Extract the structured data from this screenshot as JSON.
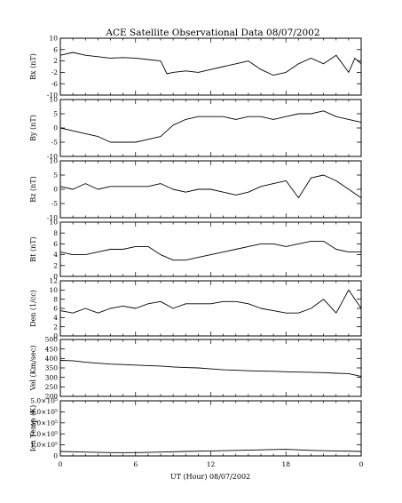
{
  "chart_data": {
    "type": "line",
    "title": "ACE Satellite Observational Data   08/07/2002",
    "xlabel": "UT (Hour)   08/07/2002",
    "x_ticks": [
      "0",
      "6",
      "12",
      "18",
      "0"
    ],
    "x_range": [
      0,
      24
    ],
    "grid": false,
    "series_color": "#000000",
    "panels": [
      {
        "name": "Bx",
        "ylabel": "Bx (nT)",
        "ylim": [
          -10,
          10
        ],
        "y_ticks": [
          "10",
          "6",
          "2",
          "-2",
          "-6",
          "-10"
        ],
        "y_tick_values": [
          10,
          6,
          2,
          -2,
          -6,
          -10
        ],
        "x": [
          0,
          1,
          2,
          3,
          4,
          5,
          6,
          7,
          8,
          8.5,
          9,
          10,
          11,
          12,
          13,
          14,
          15,
          16,
          17,
          18,
          19,
          20,
          21,
          22,
          23,
          23.5,
          24
        ],
        "y": [
          4,
          5,
          4,
          3.5,
          3,
          3.2,
          3,
          2.5,
          2,
          -2.5,
          -2,
          -1.5,
          -2,
          -1,
          0,
          1,
          2,
          -1,
          -3,
          -2,
          1,
          3,
          1,
          4,
          -2,
          3,
          1
        ]
      },
      {
        "name": "By",
        "ylabel": "By (nT)",
        "ylim": [
          -10,
          10
        ],
        "y_ticks": [
          "10",
          "5",
          "0",
          "-5",
          "-10"
        ],
        "y_tick_values": [
          10,
          5,
          0,
          -5,
          -10
        ],
        "x": [
          0,
          1,
          2,
          3,
          4,
          5,
          6,
          7,
          8,
          9,
          10,
          11,
          12,
          13,
          14,
          15,
          16,
          17,
          18,
          19,
          20,
          21,
          22,
          23,
          24
        ],
        "y": [
          0,
          -1,
          -2,
          -3,
          -5,
          -5,
          -5,
          -4,
          -3,
          1,
          3,
          4,
          4,
          4,
          3,
          4,
          4,
          3,
          4,
          5,
          5,
          6,
          4,
          3,
          2
        ]
      },
      {
        "name": "Bz",
        "ylabel": "Bz (nT)",
        "ylim": [
          -10,
          10
        ],
        "y_ticks": [
          "10",
          "5",
          "0",
          "-5",
          "-10"
        ],
        "y_tick_values": [
          10,
          5,
          0,
          -5,
          -10
        ],
        "x": [
          0,
          1,
          2,
          3,
          4,
          5,
          6,
          7,
          8,
          9,
          10,
          11,
          12,
          13,
          14,
          15,
          16,
          17,
          18,
          19,
          20,
          21,
          22,
          23,
          24
        ],
        "y": [
          1,
          0,
          2,
          0,
          1,
          1,
          1,
          1,
          2,
          0,
          -1,
          0,
          0,
          -1,
          -2,
          -1,
          1,
          2,
          3,
          -3,
          4,
          5,
          3,
          0,
          -3
        ]
      },
      {
        "name": "Bt",
        "ylabel": "Bt (nT)",
        "ylim": [
          0,
          10
        ],
        "y_ticks": [
          "10",
          "8",
          "6",
          "4",
          "2",
          "0"
        ],
        "y_tick_values": [
          10,
          8,
          6,
          4,
          2,
          0
        ],
        "x": [
          0,
          1,
          2,
          3,
          4,
          5,
          6,
          7,
          8,
          9,
          10,
          11,
          12,
          13,
          14,
          15,
          16,
          17,
          18,
          19,
          20,
          21,
          22,
          23,
          24
        ],
        "y": [
          4.5,
          4,
          4,
          4.5,
          5,
          5,
          5.5,
          5.5,
          4,
          3,
          3,
          3.5,
          4,
          4.5,
          5,
          5.5,
          6,
          6,
          5.5,
          6,
          6.5,
          6.5,
          5,
          4.5,
          4.5
        ]
      },
      {
        "name": "Den",
        "ylabel": "Den (1/cc)",
        "ylim": [
          0,
          12
        ],
        "y_ticks": [
          "12",
          "10",
          "8",
          "6",
          "4",
          "2",
          "0"
        ],
        "y_tick_values": [
          12,
          10,
          8,
          6,
          4,
          2,
          0
        ],
        "x": [
          0,
          1,
          2,
          3,
          4,
          5,
          6,
          7,
          8,
          9,
          10,
          11,
          12,
          13,
          14,
          15,
          16,
          17,
          18,
          19,
          20,
          21,
          22,
          23,
          24
        ],
        "y": [
          5.5,
          5,
          6,
          5,
          6,
          6.5,
          6,
          7,
          7.5,
          6,
          7,
          7,
          7,
          7.5,
          7.5,
          7,
          6,
          5.5,
          5,
          5,
          6,
          8,
          5,
          10,
          6
        ]
      },
      {
        "name": "Vel",
        "ylabel": "Vel (Km/sec)",
        "ylim": [
          200,
          500
        ],
        "y_ticks": [
          "500",
          "450",
          "400",
          "350",
          "300",
          "250",
          "200"
        ],
        "y_tick_values": [
          500,
          450,
          400,
          350,
          300,
          250,
          200
        ],
        "x": [
          0,
          1,
          2,
          3,
          4,
          5,
          6,
          7,
          8,
          9,
          10,
          11,
          12,
          13,
          14,
          15,
          16,
          17,
          18,
          19,
          20,
          21,
          22,
          23,
          24
        ],
        "y": [
          390,
          388,
          380,
          375,
          370,
          368,
          365,
          362,
          360,
          355,
          352,
          350,
          345,
          340,
          338,
          335,
          333,
          332,
          330,
          328,
          327,
          325,
          322,
          320,
          305
        ]
      },
      {
        "name": "IonTemp",
        "ylabel": "Ion Temp (K)",
        "ylim": [
          0,
          500000
        ],
        "y_ticks": [
          "5.0×10⁵",
          "4.0×10⁵",
          "3.0×10⁵",
          "2.0×10⁵",
          "1.0×10⁵",
          "0"
        ],
        "y_tick_values": [
          500000,
          400000,
          300000,
          200000,
          100000,
          0
        ],
        "x": [
          0,
          2,
          4,
          6,
          8,
          10,
          12,
          14,
          16,
          18,
          20,
          22,
          24
        ],
        "y": [
          40000,
          35000,
          30000,
          30000,
          35000,
          40000,
          45000,
          50000,
          55000,
          60000,
          50000,
          45000,
          40000
        ]
      }
    ]
  }
}
